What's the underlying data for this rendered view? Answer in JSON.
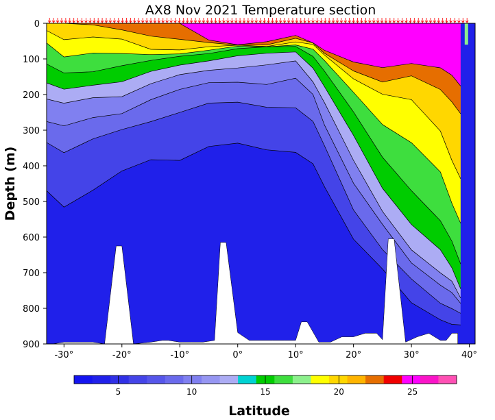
{
  "chart_data": {
    "type": "heatmap",
    "title": "AX8 Nov 2021 Temperature section",
    "xlabel": "Latitude",
    "ylabel": "Depth (m)",
    "xlim": [
      -33,
      41
    ],
    "ylim": [
      0,
      900
    ],
    "x_ticks": [
      -30,
      -20,
      -10,
      0,
      10,
      20,
      30,
      40
    ],
    "x_tick_labels": [
      "-30°",
      "-20°",
      "-10°",
      "0°",
      "10°",
      "20°",
      "30°",
      "40°"
    ],
    "y_ticks": [
      0,
      100,
      200,
      300,
      400,
      500,
      600,
      700,
      800,
      900
    ],
    "y_tick_labels": [
      "0",
      "100",
      "200",
      "300",
      "400",
      "500",
      "600",
      "700",
      "800",
      "900"
    ],
    "colorbar": {
      "min": 2,
      "max": 28,
      "step": 1,
      "ticks": [
        5,
        10,
        15,
        20,
        25
      ],
      "tick_labels": [
        "5",
        "10",
        "15",
        "20",
        "25"
      ],
      "colors": [
        "#1414f0",
        "#2020ea",
        "#3030e6",
        "#4444e8",
        "#5656ea",
        "#6a6aec",
        "#8080f0",
        "#9696f2",
        "#acacf4",
        "#00d2d2",
        "#00cc00",
        "#3ede3e",
        "#8cf08c",
        "#ffff00",
        "#ffd700",
        "#ffb400",
        "#e66e00",
        "#f00000",
        "#ff00ff",
        "#fa14c8",
        "#ff50b4"
      ]
    },
    "isotherm_depths": {
      "lats": [
        -33,
        -30,
        -25,
        -20,
        -15,
        -10,
        -5,
        0,
        5,
        10,
        13,
        15,
        20,
        25,
        30,
        35,
        37,
        38.5
      ],
      "levels": [
        {
          "t": 6,
          "d": [
            470,
            510,
            470,
            420,
            380,
            380,
            350,
            340,
            350,
            360,
            400,
            460,
            600,
            690,
            790,
            830,
            840,
            850
          ]
        },
        {
          "t": 8,
          "d": [
            330,
            360,
            330,
            300,
            270,
            250,
            230,
            220,
            230,
            240,
            280,
            340,
            520,
            640,
            720,
            780,
            800,
            820
          ]
        },
        {
          "t": 10,
          "d": [
            270,
            290,
            270,
            250,
            210,
            190,
            170,
            160,
            170,
            160,
            200,
            280,
            450,
            570,
            670,
            730,
            760,
            790
          ]
        },
        {
          "t": 12,
          "d": [
            210,
            230,
            210,
            200,
            170,
            150,
            130,
            120,
            120,
            110,
            160,
            220,
            390,
            530,
            630,
            700,
            730,
            770
          ]
        },
        {
          "t": 14,
          "d": [
            170,
            190,
            170,
            160,
            140,
            120,
            100,
            90,
            90,
            80,
            120,
            180,
            320,
            460,
            560,
            640,
            690,
            740
          ]
        },
        {
          "t": 16,
          "d": [
            120,
            140,
            130,
            120,
            110,
            90,
            80,
            75,
            70,
            60,
            90,
            140,
            250,
            370,
            470,
            560,
            610,
            670
          ]
        },
        {
          "t": 18,
          "d": [
            60,
            90,
            80,
            90,
            90,
            80,
            75,
            70,
            65,
            55,
            75,
            110,
            190,
            280,
            340,
            420,
            500,
            560
          ]
        },
        {
          "t": 20,
          "d": [
            20,
            40,
            40,
            50,
            70,
            70,
            70,
            65,
            60,
            50,
            65,
            90,
            150,
            200,
            220,
            300,
            380,
            440
          ]
        },
        {
          "t": 22,
          "d": [
            0,
            0,
            10,
            20,
            30,
            45,
            60,
            60,
            55,
            45,
            60,
            80,
            130,
            170,
            150,
            180,
            220,
            260
          ]
        },
        {
          "t": 24,
          "d": [
            0,
            0,
            0,
            0,
            0,
            5,
            50,
            55,
            50,
            40,
            55,
            70,
            110,
            130,
            110,
            120,
            150,
            180
          ]
        }
      ]
    },
    "bottom_profile": {
      "lats": [
        -33,
        -32,
        -30,
        -28,
        -25,
        -23,
        -21,
        -20,
        -18,
        -15,
        -13,
        -12,
        -10,
        -8,
        -6,
        -4,
        -3,
        -2,
        0,
        2,
        4,
        6,
        8,
        10,
        11,
        12,
        14,
        16,
        18,
        20,
        22,
        24,
        25,
        26,
        27,
        29,
        31,
        33,
        35,
        36,
        37,
        38
      ],
      "depth": [
        900,
        900,
        895,
        895,
        895,
        900,
        625,
        625,
        900,
        895,
        890,
        890,
        895,
        895,
        895,
        890,
        615,
        615,
        868,
        890,
        890,
        890,
        890,
        890,
        838,
        838,
        895,
        895,
        880,
        880,
        870,
        870,
        888,
        605,
        605,
        895,
        880,
        870,
        890,
        890,
        870,
        870
      ]
    },
    "station_lats": [
      -32.5,
      -31.8,
      -31.1,
      -30.4,
      -29.7,
      -29.0,
      -28.3,
      -27.6,
      -26.9,
      -26.2,
      -25.5,
      -24.8,
      -24.1,
      -23.4,
      -22.7,
      -22.0,
      -21.3,
      -20.6,
      -19.9,
      -19.2,
      -18.5,
      -17.8,
      -17.1,
      -16.4,
      -15.7,
      -15.0,
      -14.3,
      -13.6,
      -12.9,
      -12.2,
      -11.5,
      -10.8,
      -10.1,
      -9.4,
      -8.7,
      -8.0,
      -7.3,
      -6.6,
      -5.9,
      -5.2,
      -4.5,
      -3.8,
      -3.1,
      -2.4,
      -1.7,
      -1.0,
      -0.3,
      0.4,
      1.1,
      1.8,
      2.5,
      3.2,
      3.9,
      4.6,
      5.3,
      6.0,
      6.7,
      7.4,
      8.1,
      8.8,
      9.5,
      10.2,
      10.9,
      11.6,
      12.3,
      13.0,
      13.7,
      14.4,
      15.1,
      15.8,
      16.5,
      17.2,
      17.9,
      18.6,
      19.3,
      20.0,
      20.7,
      21.4,
      22.1,
      22.8,
      23.5,
      24.2,
      24.9,
      25.6,
      26.3,
      27.0,
      27.7,
      28.4,
      29.1,
      29.8,
      30.5,
      31.2,
      31.9,
      32.6,
      33.3,
      34.0,
      34.7,
      35.4,
      36.1,
      36.8,
      37.5,
      38.2,
      38.9,
      39.6
    ],
    "colors": {
      "marker": "#ff0000",
      "land": "#ffffff",
      "contour": "#000000"
    }
  }
}
